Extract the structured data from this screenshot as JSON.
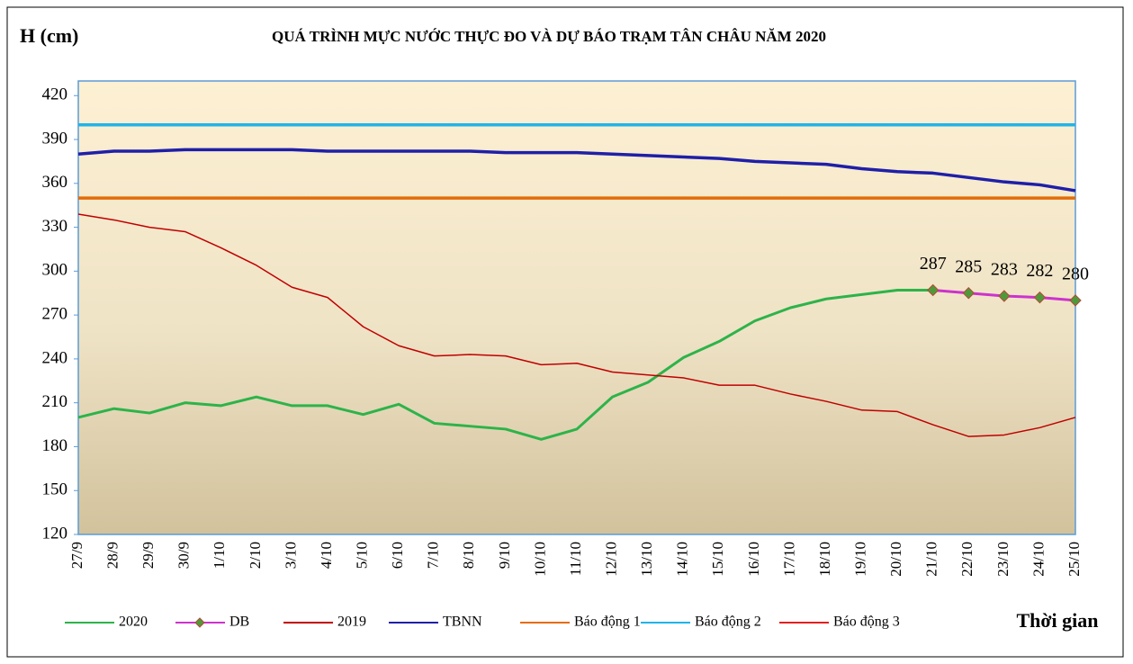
{
  "chart_data": {
    "type": "line",
    "title": "QUÁ TRÌNH MỰC NƯỚC THỰC ĐO VÀ DỰ BÁO TRẠM TÂN CHÂU NĂM 2020",
    "y_label": "H (cm)",
    "x_label": "Thời gian",
    "categories": [
      "27/9",
      "28/9",
      "29/9",
      "30/9",
      "1/10",
      "2/10",
      "3/10",
      "4/10",
      "5/10",
      "6/10",
      "7/10",
      "8/10",
      "9/10",
      "10/10",
      "11/10",
      "12/10",
      "13/10",
      "14/10",
      "15/10",
      "16/10",
      "17/10",
      "18/10",
      "19/10",
      "20/10",
      "21/10",
      "22/10",
      "23/10",
      "24/10",
      "25/10"
    ],
    "ylim": [
      120,
      430
    ],
    "yticks": [
      120,
      150,
      180,
      210,
      240,
      270,
      300,
      330,
      360,
      390,
      420
    ],
    "grid": false,
    "legend": "bottom",
    "series": [
      {
        "name": "2020",
        "color": "#2db34a",
        "width": 3,
        "values": [
          200,
          206,
          203,
          210,
          208,
          214,
          208,
          208,
          202,
          209,
          196,
          194,
          192,
          185,
          192,
          214,
          224,
          241,
          252,
          266,
          275,
          281,
          284,
          287,
          287,
          null,
          null,
          null,
          null
        ]
      },
      {
        "name": "DB",
        "color": "#cc33cc",
        "width": 3,
        "marker": "diamond",
        "marker_color": "#4e9a3a",
        "data_labels": true,
        "values": [
          null,
          null,
          null,
          null,
          null,
          null,
          null,
          null,
          null,
          null,
          null,
          null,
          null,
          null,
          null,
          null,
          null,
          null,
          null,
          null,
          null,
          null,
          null,
          null,
          287,
          285,
          283,
          282,
          280
        ]
      },
      {
        "name": "2019",
        "color": "#c00000",
        "width": 1.5,
        "values": [
          339,
          335,
          330,
          327,
          316,
          304,
          289,
          282,
          262,
          249,
          242,
          243,
          242,
          236,
          237,
          231,
          229,
          227,
          222,
          222,
          216,
          211,
          205,
          204,
          195,
          187,
          188,
          193,
          200
        ]
      },
      {
        "name": "TBNN",
        "color": "#1f1fa8",
        "width": 3.5,
        "values": [
          380,
          382,
          382,
          383,
          383,
          383,
          383,
          382,
          382,
          382,
          382,
          382,
          381,
          381,
          381,
          380,
          379,
          378,
          377,
          375,
          374,
          373,
          370,
          368,
          367,
          364,
          361,
          359,
          355
        ]
      },
      {
        "name": "Báo động 1",
        "color": "#e36c09",
        "width": 3.5,
        "values": [
          350,
          350,
          350,
          350,
          350,
          350,
          350,
          350,
          350,
          350,
          350,
          350,
          350,
          350,
          350,
          350,
          350,
          350,
          350,
          350,
          350,
          350,
          350,
          350,
          350,
          350,
          350,
          350,
          350
        ]
      },
      {
        "name": "Báo động 2",
        "color": "#1fb4e8",
        "width": 3.5,
        "values": [
          400,
          400,
          400,
          400,
          400,
          400,
          400,
          400,
          400,
          400,
          400,
          400,
          400,
          400,
          400,
          400,
          400,
          400,
          400,
          400,
          400,
          400,
          400,
          400,
          400,
          400,
          400,
          400,
          400
        ]
      },
      {
        "name": "Báo động 3",
        "color": "#e02020",
        "width": 1.5,
        "values": [
          null,
          null,
          null,
          null,
          null,
          null,
          null,
          null,
          null,
          null,
          null,
          null,
          null,
          null,
          null,
          null,
          null,
          null,
          null,
          null,
          null,
          null,
          null,
          null,
          null,
          null,
          null,
          null,
          null
        ]
      }
    ]
  }
}
